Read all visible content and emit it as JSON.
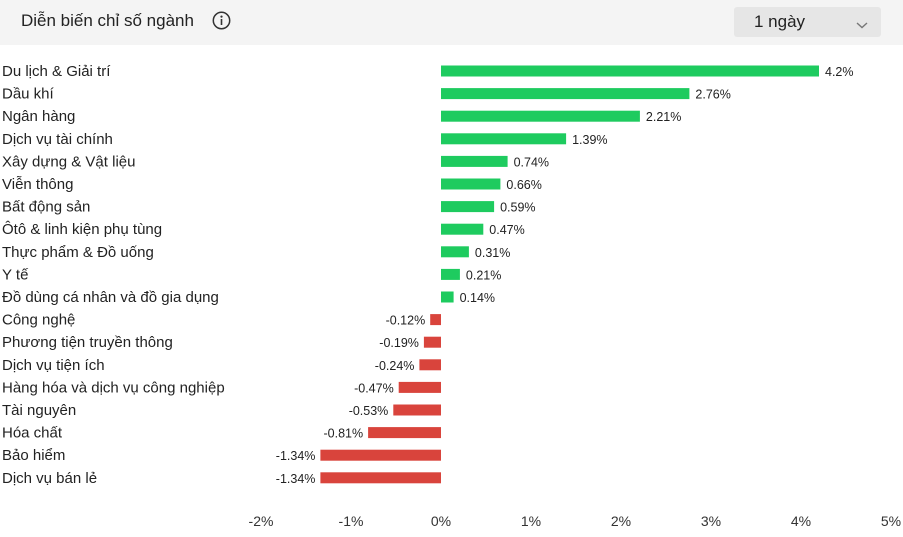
{
  "header": {
    "title": "Diễn biến chỉ số ngành",
    "period_selected": "1 ngày"
  },
  "colors": {
    "positive": "#1ecb5f",
    "negative": "#d9443c",
    "header_bg": "#f4f4f4"
  },
  "chart_data": {
    "type": "bar",
    "orientation": "horizontal",
    "categories": [
      "Du lịch & Giải trí",
      "Dầu khí",
      "Ngân hàng",
      "Dịch vụ tài chính",
      "Xây dựng & Vật liệu",
      "Viễn thông",
      "Bất động sản",
      "Ôtô & linh kiện phụ tùng",
      "Thực phẩm & Đồ uống",
      "Y tế",
      "Đồ dùng cá nhân và đồ gia dụng",
      "Công nghệ",
      "Phương tiện truyền thông",
      "Dịch vụ tiện ích",
      "Hàng hóa và dịch vụ công nghiệp",
      "Tài nguyên",
      "Hóa chất",
      "Bảo hiểm",
      "Dịch vụ bán lẻ"
    ],
    "values": [
      4.2,
      2.76,
      2.21,
      1.39,
      0.74,
      0.66,
      0.59,
      0.47,
      0.31,
      0.21,
      0.14,
      -0.12,
      -0.19,
      -0.24,
      -0.47,
      -0.53,
      -0.81,
      -1.34,
      -1.34
    ],
    "value_labels": [
      "4.2%",
      "2.76%",
      "2.21%",
      "1.39%",
      "0.74%",
      "0.66%",
      "0.59%",
      "0.47%",
      "0.31%",
      "0.21%",
      "0.14%",
      "-0.12%",
      "-0.19%",
      "-0.24%",
      "-0.47%",
      "-0.53%",
      "-0.81%",
      "-1.34%",
      "-1.34%"
    ],
    "x_ticks": [
      "-2%",
      "-1%",
      "0%",
      "1%",
      "2%",
      "3%",
      "4%",
      "5%"
    ],
    "xlim": [
      -2,
      5
    ],
    "unit": "%",
    "grid": false,
    "legend": "none"
  }
}
